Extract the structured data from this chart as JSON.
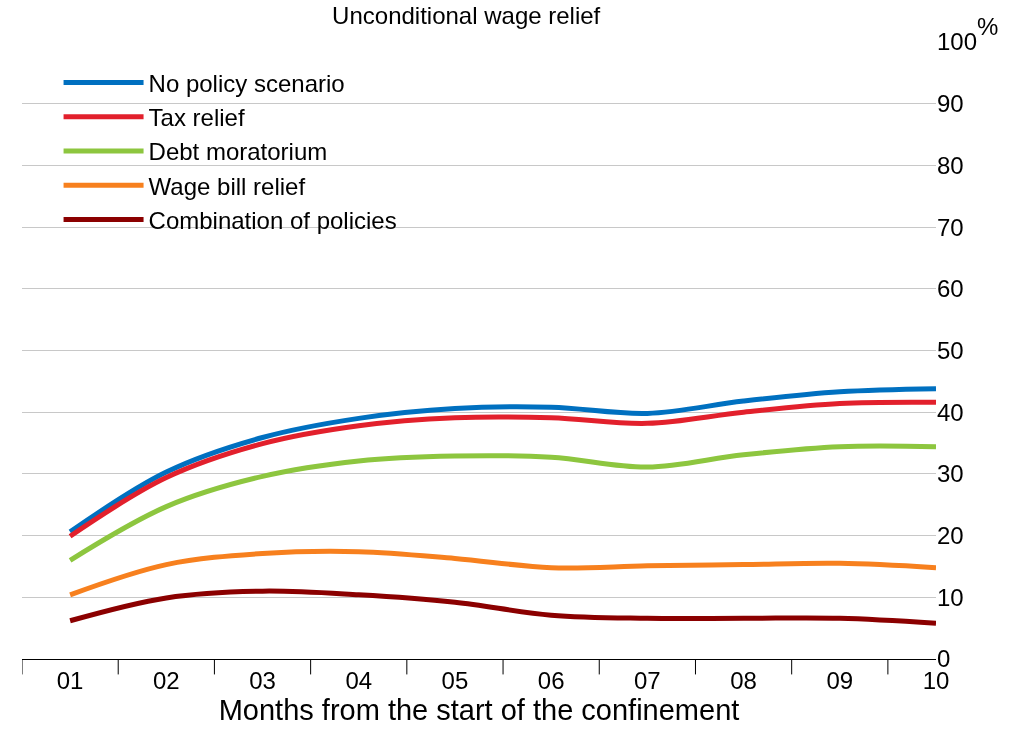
{
  "chart_data": {
    "type": "line",
    "title": "Unconditional wage relief",
    "xlabel": "Months from the start of the confinement",
    "ylabel": "%",
    "categories": [
      "01",
      "02",
      "03",
      "04",
      "05",
      "06",
      "07",
      "08",
      "09",
      "10"
    ],
    "series": [
      {
        "name": "No policy scenario",
        "color": "#0070c0",
        "values": [
          20.6,
          30.3,
          35.9,
          39.0,
          40.6,
          40.8,
          39.8,
          41.8,
          43.3,
          43.8
        ]
      },
      {
        "name": "Tax relief",
        "color": "#e2202c",
        "values": [
          19.9,
          29.4,
          34.9,
          37.8,
          39.1,
          39.1,
          38.2,
          40.0,
          41.4,
          41.6
        ]
      },
      {
        "name": "Debt moratorium",
        "color": "#8dc63f",
        "values": [
          16.0,
          24.7,
          29.6,
          32.1,
          32.9,
          32.7,
          31.1,
          33.1,
          34.4,
          34.4
        ]
      },
      {
        "name": "Wage bill relief",
        "color": "#f7801e",
        "values": [
          10.4,
          15.3,
          17.1,
          17.4,
          16.3,
          14.8,
          15.1,
          15.3,
          15.5,
          14.8
        ]
      },
      {
        "name": "Combination of policies",
        "color": "#8b0000",
        "values": [
          6.2,
          9.9,
          11.0,
          10.4,
          9.2,
          7.1,
          6.6,
          6.6,
          6.6,
          5.8
        ]
      }
    ],
    "ylim": [
      0,
      100
    ],
    "yticks": [
      0,
      10,
      20,
      30,
      40,
      50,
      60,
      70,
      80,
      90,
      100
    ],
    "grid": "y",
    "legend": "top left",
    "marker": "none",
    "line_style": "solid"
  }
}
